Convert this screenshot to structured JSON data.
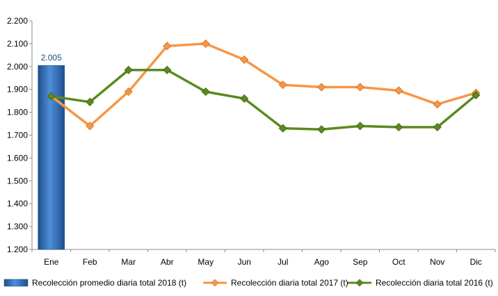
{
  "chart_data": {
    "type": "bar+line",
    "categories": [
      "Ene",
      "Feb",
      "Mar",
      "Abr",
      "May",
      "Jun",
      "Jul",
      "Ago",
      "Sep",
      "Oct",
      "Nov",
      "Dic"
    ],
    "ylim": [
      1200,
      2200
    ],
    "yticks": [
      1200,
      1300,
      1400,
      1500,
      1600,
      1700,
      1800,
      1900,
      2000,
      2100,
      2200
    ],
    "ytick_labels": [
      "1.200",
      "1.300",
      "1.400",
      "1.500",
      "1.600",
      "1.700",
      "1.800",
      "1.900",
      "2.000",
      "2.100",
      "2.200"
    ],
    "grid": false,
    "legend_position": "bottom",
    "bar_series": {
      "name": "Recolección promedio diaria total 2018 (t)",
      "color": "#2e75b6",
      "values": [
        2005
      ],
      "data_labels": [
        "2.005"
      ]
    },
    "series": [
      {
        "name": "Recolección diaria total 2017 (t)",
        "color": "#f79646",
        "values": [
          1870,
          1740,
          1890,
          2090,
          2100,
          2030,
          1920,
          1910,
          1910,
          1895,
          1835,
          1885
        ]
      },
      {
        "name": "Recolección diaria total 2016 (t)",
        "color": "#5a8a1e",
        "values": [
          1870,
          1845,
          1985,
          1985,
          1890,
          1860,
          1730,
          1725,
          1740,
          1735,
          1735,
          1875
        ]
      }
    ]
  }
}
